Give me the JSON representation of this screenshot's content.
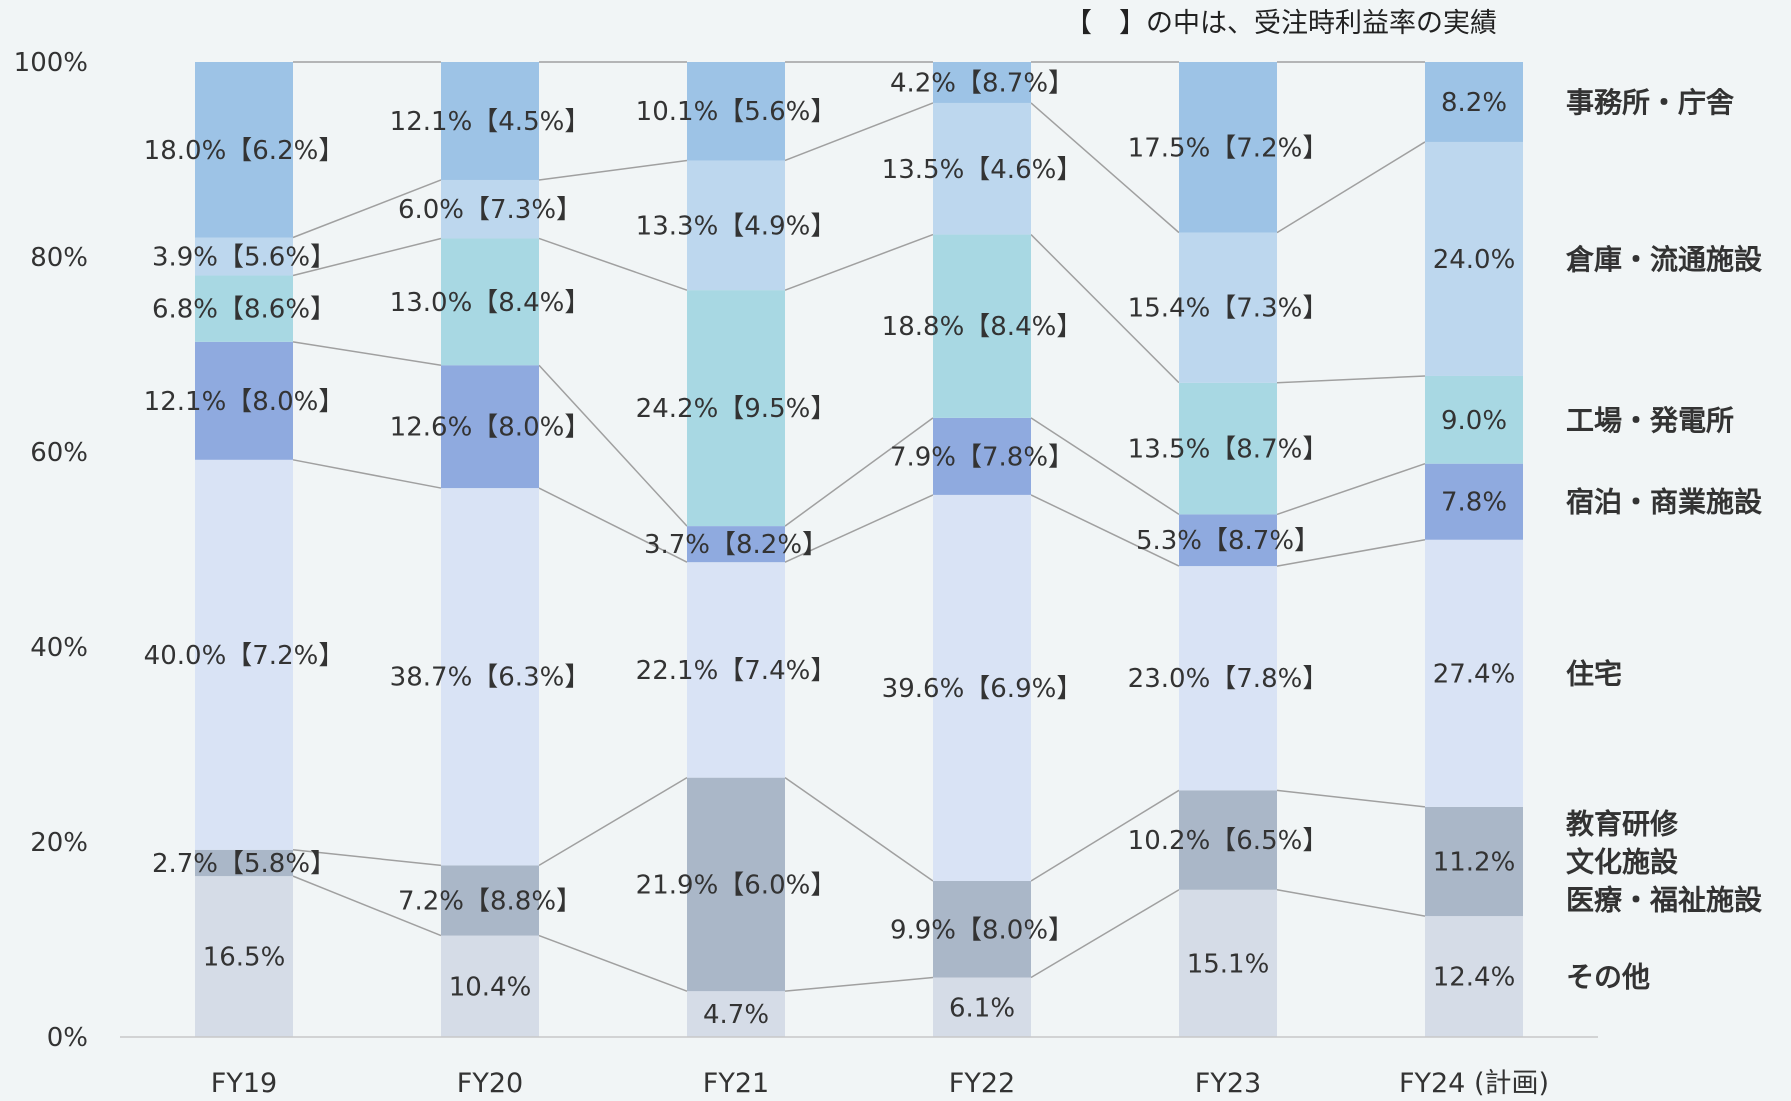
{
  "chart_data": {
    "type": "bar",
    "stacked": true,
    "note": "【　】の中は、受注時利益率の実績",
    "categories": [
      "FY19",
      "FY20",
      "FY21",
      "FY22",
      "FY23",
      "FY24 (計画)"
    ],
    "ylim": [
      0,
      100
    ],
    "yticks": [
      "0%",
      "20%",
      "40%",
      "60%",
      "80%",
      "100%"
    ],
    "grid": false,
    "legend": "right",
    "series": [
      {
        "name": "その他",
        "color": "#d5dce7",
        "values": [
          16.5,
          10.4,
          4.7,
          6.1,
          15.1,
          12.4
        ],
        "labels": [
          "16.5%",
          "10.4%",
          "4.7%",
          "6.1%",
          "15.1%",
          "12.4%"
        ]
      },
      {
        "name": "教育研修\n文化施設\n医療・福祉施設",
        "color": "#aab7c8",
        "values": [
          2.7,
          7.2,
          21.9,
          9.9,
          10.2,
          11.2
        ],
        "labels": [
          "2.7%【5.8%】",
          "7.2%【8.8%】",
          "21.9%【6.0%】",
          "9.9%【8.0%】",
          "10.2%【6.5%】",
          "11.2%"
        ]
      },
      {
        "name": "住宅",
        "color": "#d9e3f5",
        "values": [
          40.0,
          38.7,
          22.1,
          39.6,
          23.0,
          27.4
        ],
        "labels": [
          "40.0%【7.2%】",
          "38.7%【6.3%】",
          "22.1%【7.4%】",
          "39.6%【6.9%】",
          "23.0%【7.8%】",
          "27.4%"
        ]
      },
      {
        "name": "宿泊・商業施設",
        "color": "#8faadf",
        "values": [
          12.1,
          12.6,
          3.7,
          7.9,
          5.3,
          7.8
        ],
        "labels": [
          "12.1%【8.0%】",
          "12.6%【8.0%】",
          "3.7%【8.2%】",
          "7.9%【7.8%】",
          "5.3%【8.7%】",
          "7.8%"
        ]
      },
      {
        "name": "工場・発電所",
        "color": "#a8d8e3",
        "values": [
          6.8,
          13.0,
          24.2,
          18.8,
          13.5,
          9.0
        ],
        "labels": [
          "6.8%【8.6%】",
          "13.0%【8.4%】",
          "24.2%【9.5%】",
          "18.8%【8.4%】",
          "13.5%【8.7%】",
          "9.0%"
        ]
      },
      {
        "name": "倉庫・流通施設",
        "color": "#bdd7ee",
        "values": [
          3.9,
          6.0,
          13.3,
          13.5,
          15.4,
          24.0
        ],
        "labels": [
          "3.9%【5.6%】",
          "6.0%【7.3%】",
          "13.3%【4.9%】",
          "13.5%【4.6%】",
          "15.4%【7.3%】",
          "24.0%"
        ]
      },
      {
        "name": "事務所・庁舎",
        "color": "#9dc3e6",
        "values": [
          18.0,
          12.1,
          10.1,
          4.2,
          17.5,
          8.2
        ],
        "labels": [
          "18.0%【6.2%】",
          "12.1%【4.5%】",
          "10.1%【5.6%】",
          "4.2%【8.7%】",
          "17.5%【7.2%】",
          "8.2%"
        ]
      }
    ]
  }
}
